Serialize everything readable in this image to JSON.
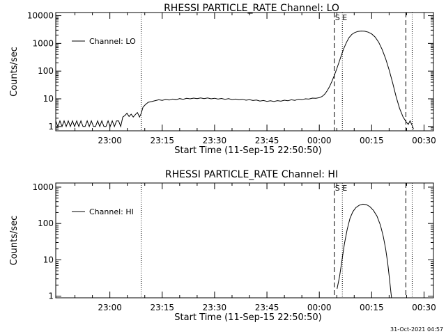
{
  "timestamp": "31-Oct-2021 04:57",
  "chart_data": [
    {
      "type": "line",
      "title": "RHESSI PARTICLE_RATE Channel: LO",
      "xlabel": "Start Time (11-Sep-15 22:50:50)",
      "ylabel": "Counts/sec",
      "x_tick_labels": [
        "23:00",
        "23:15",
        "23:30",
        "23:45",
        "00:00",
        "00:15",
        "00:30"
      ],
      "x_tick_minutes": [
        0,
        15,
        30,
        45,
        60,
        75,
        90
      ],
      "xlim_minutes": [
        -15.5,
        92.7
      ],
      "y_scale": "log",
      "y_tick_labels": [
        "1",
        "10",
        "100",
        "1000",
        "10000"
      ],
      "y_tick_values": [
        1,
        10,
        100,
        1000,
        10000
      ],
      "ylim": [
        0.7,
        13000
      ],
      "legend": {
        "entry": "Channel: LO",
        "placement": "top-left"
      },
      "marker_text": "S E",
      "vlines": [
        {
          "minutes": 9.0,
          "style": "dotted"
        },
        {
          "minutes": 64.3,
          "style": "dashed"
        },
        {
          "minutes": 66.6,
          "style": "dotted"
        },
        {
          "minutes": 84.8,
          "style": "dashed"
        },
        {
          "minutes": 86.6,
          "style": "dotted"
        }
      ],
      "series": [
        {
          "name": "Channel: LO",
          "points": [
            [
              -15.5,
              1.6
            ],
            [
              -14.9,
              1.0
            ],
            [
              -14.3,
              1.6
            ],
            [
              -13.7,
              1.0
            ],
            [
              -13.1,
              1.6
            ],
            [
              -12.5,
              1.0
            ],
            [
              -11.9,
              1.6
            ],
            [
              -11.3,
              1.0
            ],
            [
              -10.7,
              1.6
            ],
            [
              -10.1,
              1.0
            ],
            [
              -9.5,
              1.6
            ],
            [
              -8.9,
              1.0
            ],
            [
              -8.3,
              1.6
            ],
            [
              -7.7,
              1.0
            ],
            [
              -7.1,
              1.0
            ],
            [
              -6.5,
              1.6
            ],
            [
              -5.9,
              1.0
            ],
            [
              -5.3,
              1.6
            ],
            [
              -4.7,
              1.0
            ],
            [
              -4.1,
              1.0
            ],
            [
              -3.5,
              1.6
            ],
            [
              -2.9,
              1.0
            ],
            [
              -2.3,
              1.6
            ],
            [
              -1.7,
              1.0
            ],
            [
              -1.1,
              1.0
            ],
            [
              -0.5,
              1.6
            ],
            [
              0.1,
              1.0
            ],
            [
              0.7,
              1.6
            ],
            [
              1.3,
              1.0
            ],
            [
              1.9,
              1.6
            ],
            [
              2.5,
              1.6
            ],
            [
              3.1,
              1.0
            ],
            [
              3.7,
              2.2
            ],
            [
              4.3,
              2.5
            ],
            [
              4.9,
              3.0
            ],
            [
              5.5,
              2.3
            ],
            [
              6.1,
              2.8
            ],
            [
              6.7,
              2.2
            ],
            [
              7.3,
              2.7
            ],
            [
              7.9,
              3.2
            ],
            [
              8.5,
              2.2
            ],
            [
              9.0,
              3.0
            ],
            [
              9.5,
              5.0
            ],
            [
              10.2,
              6.2
            ],
            [
              11.0,
              7.5
            ],
            [
              12.0,
              8.0
            ],
            [
              13.0,
              8.6
            ],
            [
              14.0,
              9.2
            ],
            [
              15.0,
              8.8
            ],
            [
              16.0,
              9.5
            ],
            [
              17.0,
              9.0
            ],
            [
              18.0,
              9.8
            ],
            [
              19.0,
              9.3
            ],
            [
              20.0,
              10.2
            ],
            [
              21.0,
              9.6
            ],
            [
              22.0,
              10.4
            ],
            [
              23.0,
              10.0
            ],
            [
              24.0,
              10.6
            ],
            [
              25.0,
              10.1
            ],
            [
              26.0,
              10.8
            ],
            [
              27.0,
              10.2
            ],
            [
              28.0,
              10.7
            ],
            [
              29.0,
              10.0
            ],
            [
              30.0,
              10.5
            ],
            [
              31.0,
              9.8
            ],
            [
              32.0,
              10.3
            ],
            [
              33.0,
              9.6
            ],
            [
              34.0,
              10.1
            ],
            [
              35.0,
              9.4
            ],
            [
              36.0,
              9.8
            ],
            [
              37.0,
              9.2
            ],
            [
              38.0,
              9.6
            ],
            [
              39.0,
              8.9
            ],
            [
              40.0,
              9.3
            ],
            [
              41.0,
              8.7
            ],
            [
              42.0,
              9.0
            ],
            [
              43.0,
              8.3
            ],
            [
              44.0,
              8.7
            ],
            [
              45.0,
              8.1
            ],
            [
              46.0,
              8.5
            ],
            [
              47.0,
              8.0
            ],
            [
              48.0,
              8.6
            ],
            [
              49.0,
              8.2
            ],
            [
              50.0,
              8.9
            ],
            [
              51.0,
              8.5
            ],
            [
              52.0,
              9.2
            ],
            [
              53.0,
              8.8
            ],
            [
              54.0,
              9.6
            ],
            [
              55.0,
              9.3
            ],
            [
              56.0,
              10.0
            ],
            [
              57.0,
              9.8
            ],
            [
              58.0,
              10.6
            ],
            [
              59.0,
              10.4
            ],
            [
              60.0,
              11.0
            ],
            [
              60.8,
              12.2
            ],
            [
              61.5,
              14.5
            ],
            [
              62.2,
              19.0
            ],
            [
              62.9,
              27.0
            ],
            [
              63.6,
              42.0
            ],
            [
              64.3,
              70.0
            ],
            [
              65.0,
              120.0
            ],
            [
              65.7,
              220.0
            ],
            [
              66.4,
              400.0
            ],
            [
              67.1,
              700.0
            ],
            [
              67.8,
              1100.0
            ],
            [
              68.5,
              1600.0
            ],
            [
              69.3,
              2100.0
            ],
            [
              70.1,
              2450.0
            ],
            [
              71.0,
              2700.0
            ],
            [
              72.0,
              2800.0
            ],
            [
              73.0,
              2750.0
            ],
            [
              74.0,
              2550.0
            ],
            [
              75.0,
              2200.0
            ],
            [
              76.0,
              1700.0
            ],
            [
              77.0,
              1100.0
            ],
            [
              78.0,
              600.0
            ],
            [
              79.0,
              280.0
            ],
            [
              80.0,
              110.0
            ],
            [
              81.0,
              38.0
            ],
            [
              82.0,
              12.0
            ],
            [
              83.0,
              4.5
            ],
            [
              84.0,
              2.2
            ],
            [
              85.0,
              1.4
            ],
            [
              85.5,
              1.2
            ],
            [
              86.0,
              1.6
            ],
            [
              86.6,
              1.1
            ],
            [
              87.0,
              0.8
            ]
          ]
        }
      ]
    },
    {
      "type": "line",
      "title": "RHESSI PARTICLE_RATE Channel: HI",
      "xlabel": "Start Time (11-Sep-15 22:50:50)",
      "ylabel": "Counts/sec",
      "x_tick_labels": [
        "23:00",
        "23:15",
        "23:30",
        "23:45",
        "00:00",
        "00:15",
        "00:30"
      ],
      "x_tick_minutes": [
        0,
        15,
        30,
        45,
        60,
        75,
        90
      ],
      "xlim_minutes": [
        -15.5,
        92.7
      ],
      "y_scale": "log",
      "y_tick_labels": [
        "1",
        "10",
        "100",
        "1000"
      ],
      "y_tick_values": [
        1,
        10,
        100,
        1000
      ],
      "ylim": [
        0.9,
        1300
      ],
      "legend": {
        "entry": "Channel: HI",
        "placement": "top-left"
      },
      "marker_text": "S E",
      "vlines": [
        {
          "minutes": 9.0,
          "style": "dotted"
        },
        {
          "minutes": 64.3,
          "style": "dashed"
        },
        {
          "minutes": 66.6,
          "style": "dotted"
        },
        {
          "minutes": 84.8,
          "style": "dashed"
        },
        {
          "minutes": 86.6,
          "style": "dotted"
        }
      ],
      "series": [
        {
          "name": "Channel: HI",
          "points": [
            [
              65.1,
              1.6
            ],
            [
              65.8,
              3.5
            ],
            [
              66.5,
              10.0
            ],
            [
              67.2,
              28.0
            ],
            [
              68.0,
              70.0
            ],
            [
              68.8,
              140.0
            ],
            [
              69.6,
              210.0
            ],
            [
              70.5,
              275.0
            ],
            [
              71.5,
              320.0
            ],
            [
              72.5,
              340.0
            ],
            [
              73.5,
              330.0
            ],
            [
              74.5,
              290.0
            ],
            [
              75.5,
              230.0
            ],
            [
              76.5,
              160.0
            ],
            [
              77.5,
              90.0
            ],
            [
              78.3,
              45.0
            ],
            [
              79.0,
              20.0
            ],
            [
              79.6,
              8.0
            ],
            [
              80.1,
              3.0
            ],
            [
              80.5,
              1.3
            ],
            [
              80.7,
              0.9
            ]
          ]
        }
      ]
    }
  ]
}
